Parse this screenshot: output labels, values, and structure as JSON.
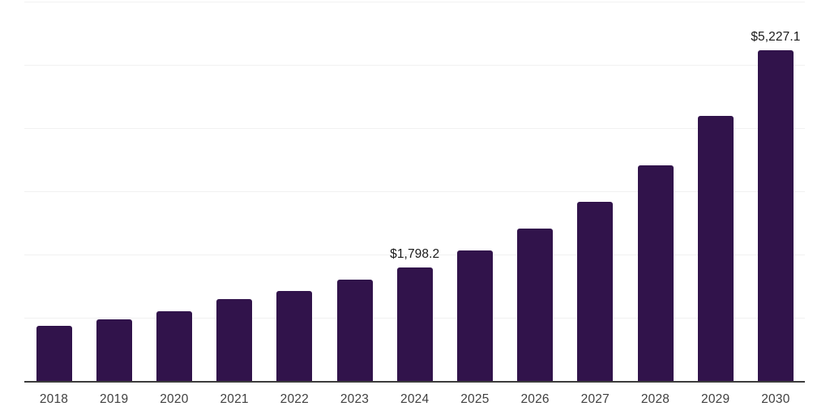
{
  "chart_data": {
    "type": "bar",
    "title": "",
    "xlabel": "",
    "ylabel": "",
    "categories": [
      "2018",
      "2019",
      "2020",
      "2021",
      "2022",
      "2023",
      "2024",
      "2025",
      "2026",
      "2027",
      "2028",
      "2029",
      "2030"
    ],
    "values": [
      875,
      970,
      1105,
      1295,
      1425,
      1600,
      1798.2,
      2065,
      2405,
      2835,
      3410,
      4190,
      5227.1
    ],
    "labeled_points": [
      {
        "index": 6,
        "category": "2024",
        "text": "$1,798.2"
      },
      {
        "index": 12,
        "category": "2030",
        "text": "$5,227.1"
      }
    ],
    "ylim": [
      0,
      6000
    ],
    "grid": {
      "show": true,
      "interval": 1000,
      "color": "#f1f1f1"
    },
    "legend": "none",
    "colors": {
      "bar": "#31134B",
      "axis_line": "#3c3c3c",
      "tick_label": "#404040",
      "data_label": "#1a1a1a",
      "background": "#ffffff"
    }
  }
}
